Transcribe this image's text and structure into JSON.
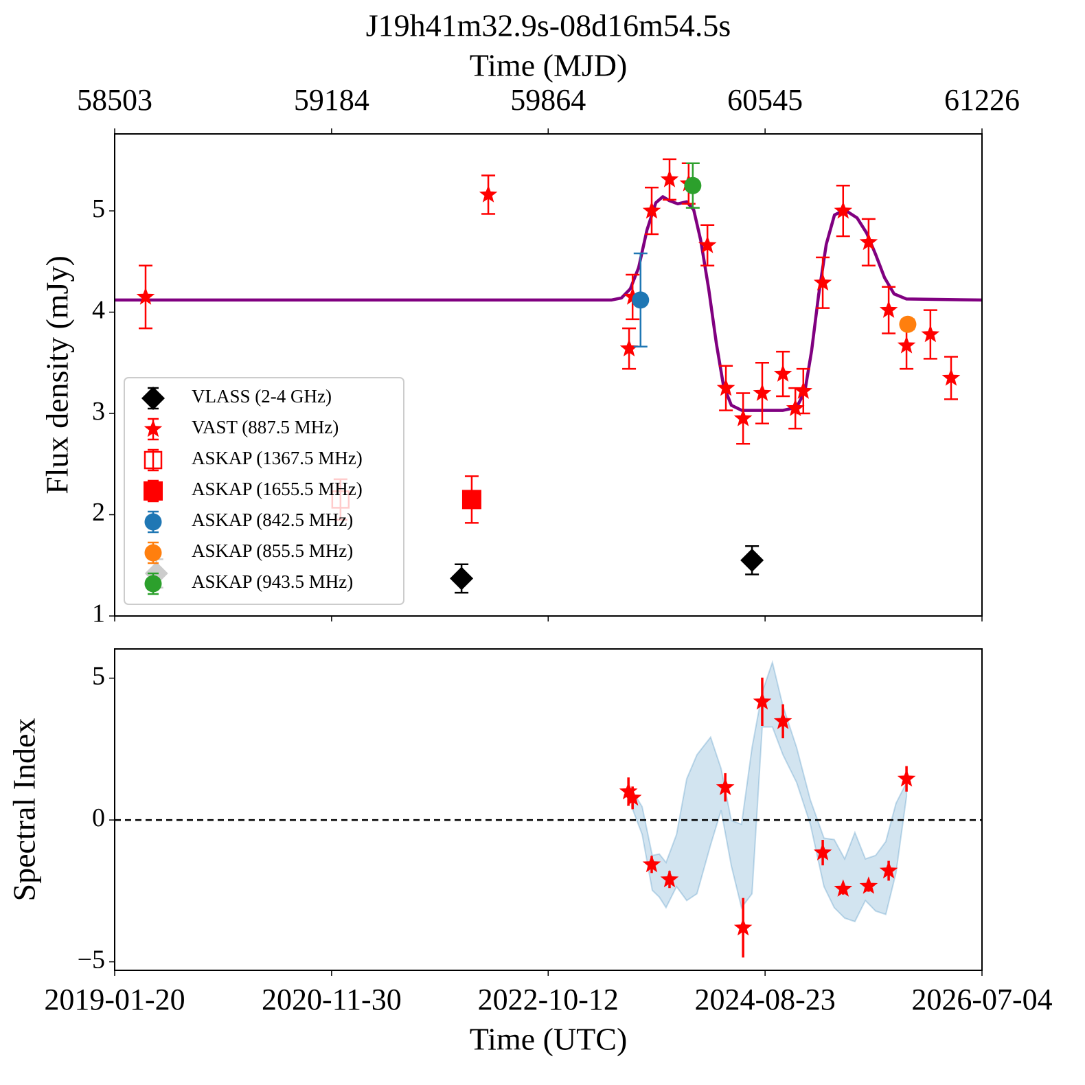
{
  "chart_data": [
    {
      "type": "errorbar",
      "title": "J19h41m32.9s-08d16m54.5s",
      "xlabel": "Time (MJD)",
      "ylabel": "Flux density (mJy)",
      "xlim": [
        58503,
        61226
      ],
      "xticks": [
        58503,
        59184,
        59864,
        60545,
        61226
      ],
      "xtick_side": "top",
      "ylim": [
        1,
        5.76
      ],
      "yticks": [
        1,
        2,
        3,
        4,
        5
      ],
      "legend": "lower left",
      "errorbar_caps": true,
      "series": [
        {
          "name": "VLASS (2-4 GHz)",
          "color": "#000000",
          "marker": "diamond",
          "x": [
            58634,
            59592,
            60504
          ],
          "values": [
            1.42,
            1.37,
            1.55
          ],
          "yerr": [
            0.14,
            0.14,
            0.14
          ]
        },
        {
          "name": "VAST (887.5 MHz)",
          "color": "#ff0000",
          "marker": "star",
          "x": [
            58600,
            59676,
            60118,
            60129,
            60189,
            60245,
            60305,
            60364,
            60422,
            60476,
            60536,
            60601,
            60640,
            60665,
            60726,
            60790,
            60870,
            60933,
            60989,
            61064,
            61129
          ],
          "values": [
            4.15,
            5.16,
            3.64,
            4.15,
            5.0,
            5.31,
            5.27,
            4.66,
            3.25,
            2.95,
            3.2,
            3.39,
            3.05,
            3.22,
            4.29,
            5.0,
            4.69,
            4.02,
            3.67,
            3.78,
            3.35
          ],
          "yerr": [
            0.31,
            0.19,
            0.2,
            0.22,
            0.23,
            0.2,
            0.2,
            0.2,
            0.22,
            0.25,
            0.3,
            0.22,
            0.2,
            0.22,
            0.25,
            0.25,
            0.23,
            0.23,
            0.23,
            0.24,
            0.21
          ]
        },
        {
          "name": "ASKAP (1367.5 MHz)",
          "color": "#ff0000",
          "marker": "square-open",
          "x": [
            59212
          ],
          "values": [
            2.15
          ],
          "yerr": [
            0.2
          ]
        },
        {
          "name": "ASKAP (1655.5 MHz)",
          "color": "#ff0000",
          "marker": "square",
          "x": [
            59624
          ],
          "values": [
            2.15
          ],
          "yerr": [
            0.23
          ]
        },
        {
          "name": "ASKAP (842.5 MHz)",
          "color": "#1f77b4",
          "marker": "circle",
          "x": [
            60154
          ],
          "values": [
            4.12
          ],
          "yerr": [
            0.46
          ]
        },
        {
          "name": "ASKAP (855.5 MHz)",
          "color": "#ff7f0e",
          "marker": "circle",
          "x": [
            60993
          ],
          "values": [
            3.88
          ],
          "yerr": [
            0.05
          ]
        },
        {
          "name": "ASKAP (943.5 MHz)",
          "color": "#2ca02c",
          "marker": "circle",
          "x": [
            60318
          ],
          "values": [
            5.25
          ],
          "yerr": [
            0.22
          ]
        }
      ],
      "model": {
        "color": "#800080",
        "x": [
          58503,
          60062,
          60094,
          60122,
          60148,
          60174,
          60202,
          60224,
          60245,
          60271,
          60299,
          60321,
          60343,
          60368,
          60392,
          60414,
          60439,
          60472,
          60515,
          60601,
          60644,
          60670,
          60691,
          60713,
          60737,
          60763,
          60795,
          60834,
          60864,
          60892,
          60920,
          60950,
          60989,
          61226
        ],
        "values": [
          4.12,
          4.12,
          4.14,
          4.23,
          4.44,
          4.81,
          5.08,
          5.14,
          5.1,
          5.07,
          5.09,
          5.01,
          4.71,
          4.23,
          3.69,
          3.28,
          3.08,
          3.03,
          3.03,
          3.03,
          3.06,
          3.22,
          3.62,
          4.17,
          4.67,
          4.96,
          5.01,
          4.93,
          4.78,
          4.57,
          4.34,
          4.18,
          4.13,
          4.12
        ]
      }
    },
    {
      "type": "errorbar",
      "xlabel": "Time (UTC)",
      "ylabel": "Spectral Index",
      "xlim": [
        58503,
        61226
      ],
      "xticks": [
        {
          "value": 58503,
          "label": "2019-01-20"
        },
        {
          "value": 59184,
          "label": "2020-11-30"
        },
        {
          "value": 59864,
          "label": "2022-10-12"
        },
        {
          "value": 60545,
          "label": "2024-08-23"
        },
        {
          "value": 61226,
          "label": "2026-07-04"
        }
      ],
      "xtick_side": "bottom",
      "ylim": [
        -5.3,
        6.03
      ],
      "yticks": [
        {
          "value": -5,
          "label": "−5"
        },
        0,
        5
      ],
      "hline": 0,
      "errorbar_caps": false,
      "series": [
        {
          "color": "#ff0000",
          "marker": "star",
          "x": [
            60116,
            60129,
            60189,
            60245,
            60420,
            60476,
            60536,
            60601,
            60726,
            60790,
            60870,
            60933,
            60989
          ],
          "values": [
            1.0,
            0.78,
            -1.57,
            -2.1,
            1.15,
            -3.8,
            4.17,
            3.48,
            -1.15,
            -2.43,
            -2.33,
            -1.79,
            1.45
          ],
          "yerr": [
            0.5,
            0.4,
            0.3,
            0.3,
            0.5,
            1.05,
            0.85,
            0.6,
            0.45,
            0.2,
            0.2,
            0.35,
            0.45
          ]
        }
      ],
      "band": {
        "color": "#1f77b4",
        "x": [
          60126,
          60159,
          60191,
          60213,
          60234,
          60267,
          60299,
          60331,
          60374,
          60407,
          60439,
          60471,
          60504,
          60536,
          60568,
          60601,
          60644,
          60687,
          60730,
          60762,
          60795,
          60827,
          60860,
          60892,
          60924,
          60956,
          60989
        ],
        "upper": [
          1.08,
          0.47,
          -1.25,
          -1.2,
          -1.5,
          -0.51,
          1.45,
          2.3,
          2.92,
          1.81,
          -0.02,
          -0.15,
          2.55,
          4.51,
          5.56,
          4.02,
          2.55,
          0.71,
          -0.64,
          -0.69,
          -1.37,
          -0.44,
          -1.37,
          -1.25,
          -0.76,
          0.59,
          1.32
        ],
        "lower": [
          0.47,
          -0.51,
          -2.48,
          -2.72,
          -3.09,
          -2.35,
          -2.84,
          -2.6,
          -0.88,
          0.34,
          -1.62,
          -3.09,
          -2.6,
          3.28,
          3.28,
          2.3,
          1.32,
          -0.15,
          -2.35,
          -3.09,
          -3.46,
          -3.58,
          -2.84,
          -3.21,
          -3.33,
          -1.86,
          0.83
        ]
      }
    }
  ]
}
